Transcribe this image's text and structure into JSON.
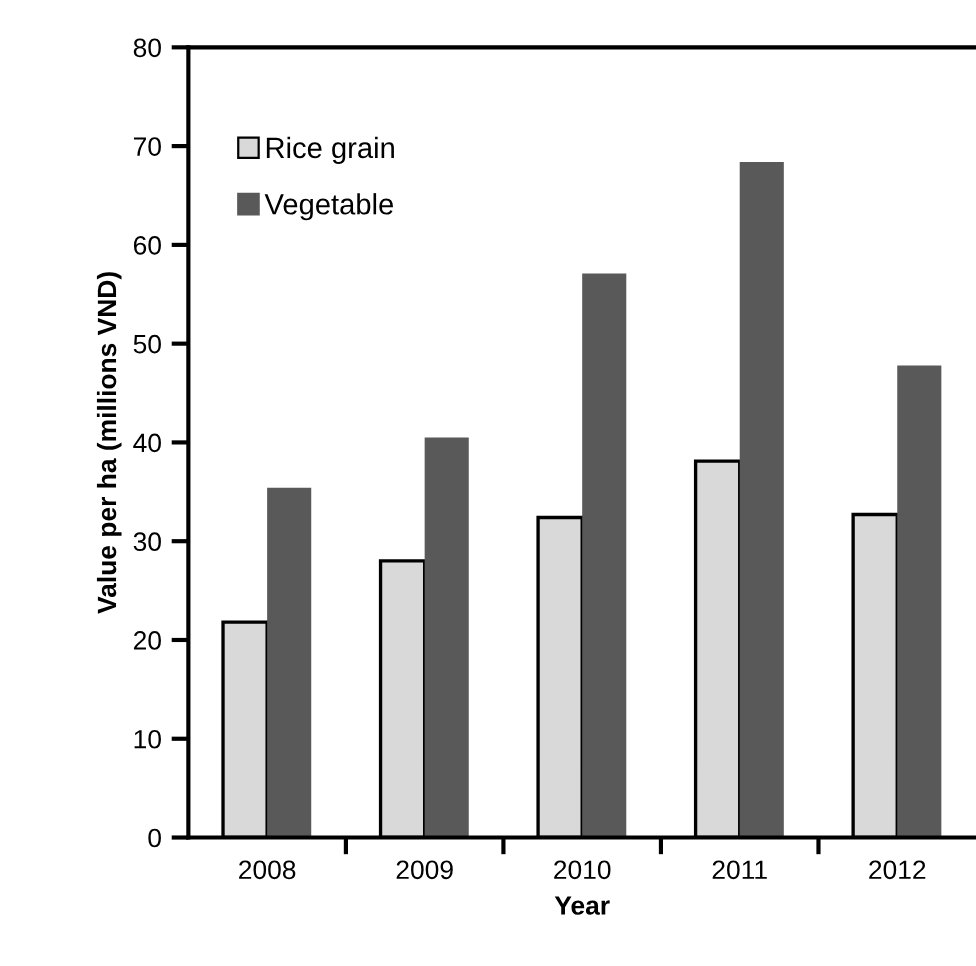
{
  "chart_data": {
    "type": "bar",
    "xlabel": "Year",
    "ylabel": "Value per ha (millions VND)",
    "categories": [
      "2008",
      "2009",
      "2010",
      "2011",
      "2012"
    ],
    "series": [
      {
        "name": "Rice grain",
        "color": "#d9d9d9",
        "values": [
          21.8,
          28.0,
          32.4,
          38.1,
          32.7
        ]
      },
      {
        "name": "Vegetable",
        "color": "#595959",
        "values": [
          35.4,
          40.5,
          57.1,
          68.4,
          47.8
        ]
      }
    ],
    "ylim": [
      0,
      80
    ],
    "yticks": [
      0,
      10,
      20,
      30,
      40,
      50,
      60,
      70,
      80
    ],
    "grid": false,
    "legend": "top left"
  }
}
